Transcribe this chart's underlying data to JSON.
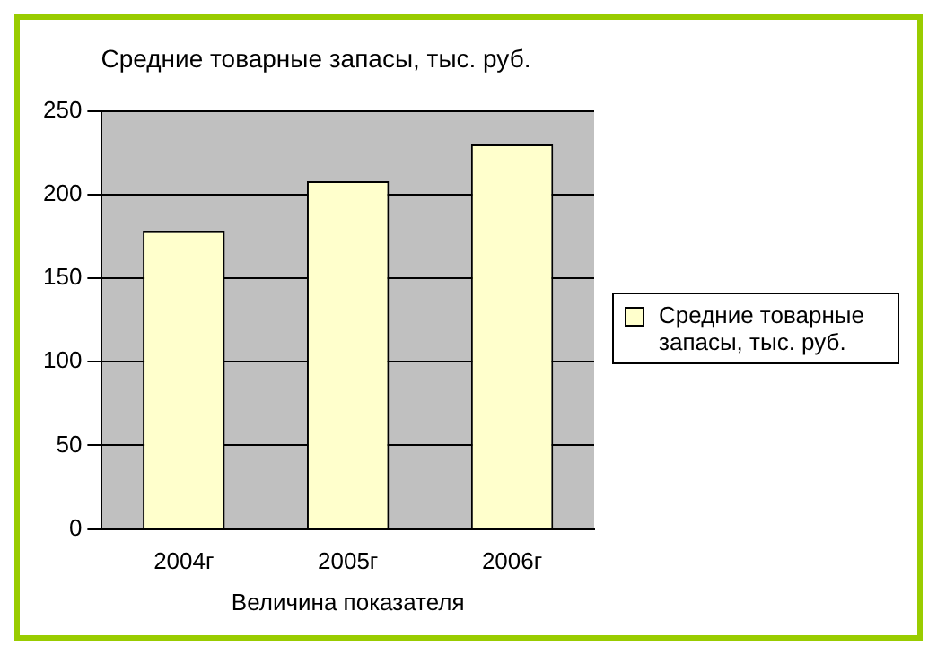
{
  "chart_data": {
    "type": "bar",
    "title": "Средние товарные запасы, тыс. руб.",
    "xlabel": "Величина показателя",
    "categories": [
      "2004г",
      "2005г",
      "2006г"
    ],
    "series": [
      {
        "name": "Средние товарные запасы, тыс. руб.",
        "color": "#ffffcc",
        "values": [
          178,
          208,
          230
        ]
      }
    ],
    "ylim": [
      0,
      250
    ],
    "yticks": [
      0,
      50,
      100,
      150,
      200,
      250
    ],
    "grid": "y",
    "legend": "right"
  }
}
